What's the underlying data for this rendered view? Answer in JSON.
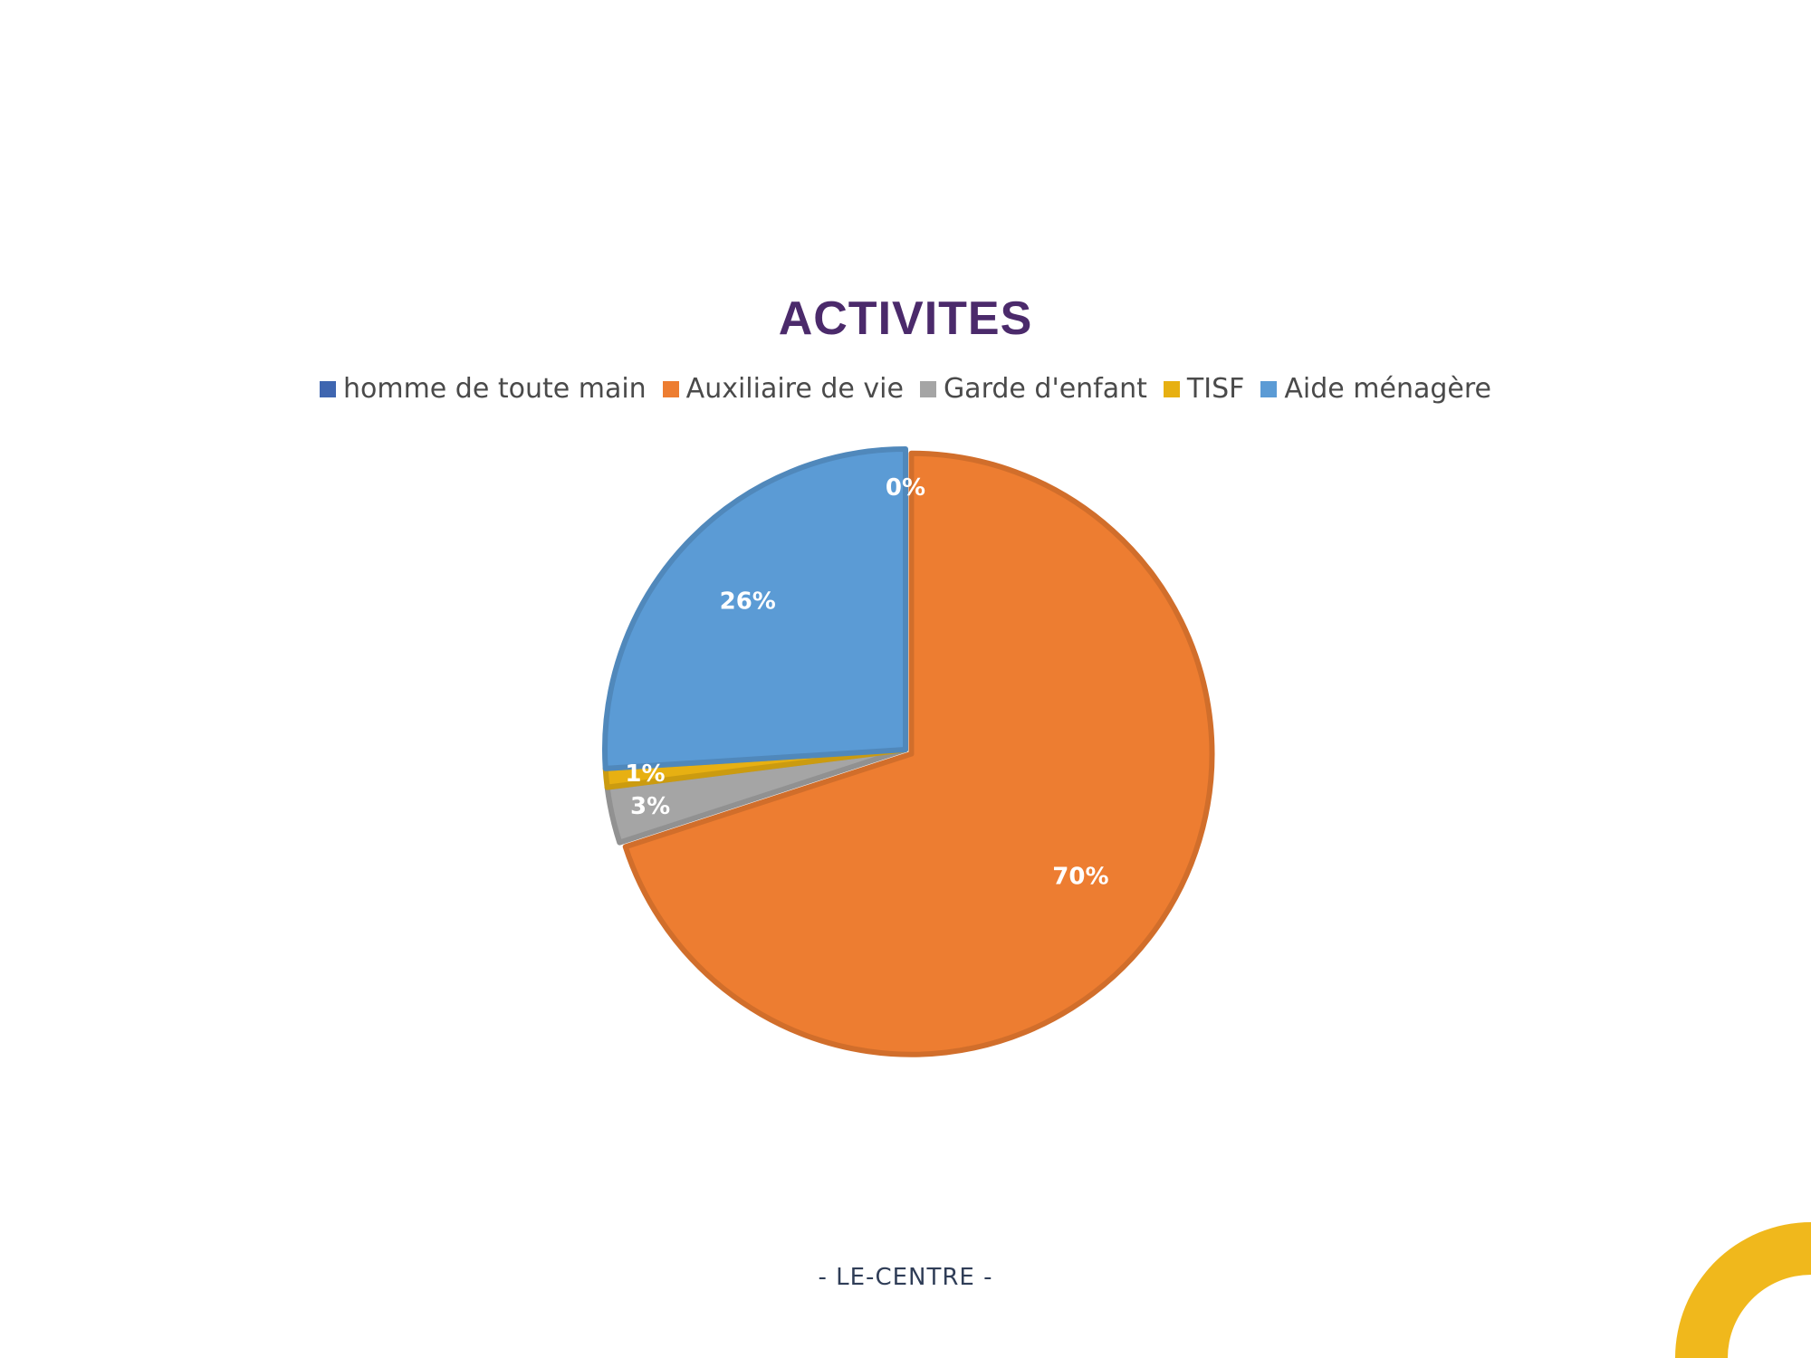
{
  "footer_text": "- LE-CENTRE -",
  "colors": {
    "title": "#4b2a6b",
    "deco": "#f0b81c"
  },
  "chart_data": {
    "type": "pie",
    "title": "ACTIVITES",
    "legend_position": "top",
    "slices": [
      {
        "label": "homme de toute main",
        "value": 0,
        "display": "0%",
        "color": "#3f66b0"
      },
      {
        "label": "Auxiliaire de vie",
        "value": 70,
        "display": "70%",
        "color": "#ed7d31"
      },
      {
        "label": "Garde d'enfant",
        "value": 3,
        "display": "3%",
        "color": "#a5a5a5"
      },
      {
        "label": "TISF",
        "value": 1,
        "display": "1%",
        "color": "#e7b012"
      },
      {
        "label": "Aide ménagère",
        "value": 26,
        "display": "26%",
        "color": "#5b9bd5"
      }
    ]
  }
}
